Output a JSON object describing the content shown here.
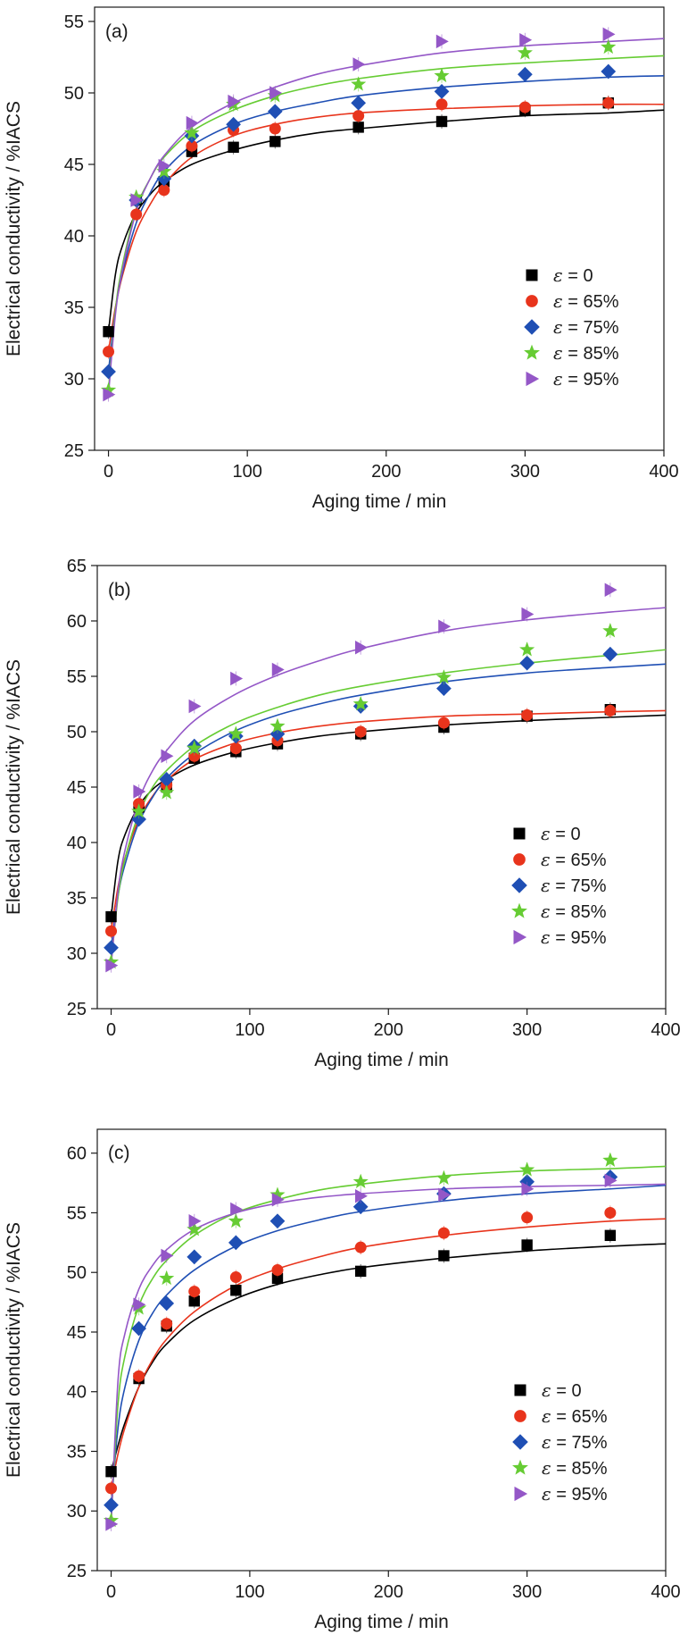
{
  "colors": {
    "e0": "#000000",
    "e65": "#e8341c",
    "e75": "#1f4fb4",
    "e85": "#66cc33",
    "e95": "#9457c7"
  },
  "chart_data": [
    {
      "type": "scatter",
      "panel_label": "(a)",
      "xlabel": "Aging time / min",
      "ylabel": "Electrical conductivity / %IACS",
      "xlim": [
        -10,
        400
      ],
      "ylim": [
        25,
        56
      ],
      "xticks": [
        0,
        100,
        200,
        300,
        400
      ],
      "yticks": [
        25,
        30,
        35,
        40,
        45,
        50,
        55
      ],
      "grid": false,
      "legend_position": "lower-right",
      "x": [
        0,
        20,
        40,
        60,
        90,
        120,
        180,
        240,
        300,
        360
      ],
      "series": [
        {
          "name": "ε = 0",
          "eps": "ε",
          "rest": " = 0",
          "marker": "square",
          "color": "#000000",
          "values": [
            33.3,
            42.5,
            43.8,
            45.9,
            46.2,
            46.6,
            47.6,
            48.0,
            48.8,
            49.3
          ]
        },
        {
          "name": "ε = 65%",
          "eps": "ε",
          "rest": " = 65%",
          "marker": "circle",
          "color": "#e8341c",
          "values": [
            31.9,
            41.5,
            43.2,
            46.3,
            47.4,
            47.5,
            48.4,
            49.2,
            49.0,
            49.3
          ]
        },
        {
          "name": "ε = 75%",
          "eps": "ε",
          "rest": " = 75%",
          "marker": "diamond",
          "color": "#1f4fb4",
          "values": [
            30.5,
            42.5,
            44.0,
            47.0,
            47.8,
            48.7,
            49.3,
            50.1,
            51.3,
            51.5
          ]
        },
        {
          "name": "ε = 85%",
          "eps": "ε",
          "rest": " = 85%",
          "marker": "star",
          "color": "#66cc33",
          "values": [
            29.2,
            42.7,
            44.5,
            47.2,
            49.2,
            49.8,
            50.6,
            51.2,
            52.8,
            53.2
          ]
        },
        {
          "name": "ε = 95%",
          "eps": "ε",
          "rest": " = 95%",
          "marker": "triangle-right",
          "color": "#9457c7",
          "values": [
            28.9,
            42.5,
            44.9,
            47.9,
            49.4,
            50.0,
            52.0,
            53.6,
            53.7,
            54.1
          ]
        }
      ],
      "fits": [
        {
          "color": "#000000",
          "x": [
            0,
            5,
            10,
            20,
            30,
            40,
            60,
            90,
            120,
            150,
            180,
            240,
            300,
            360,
            400
          ],
          "y": [
            33.3,
            37.3,
            39.3,
            41.6,
            42.9,
            43.8,
            45.0,
            46.0,
            46.7,
            47.2,
            47.5,
            48.0,
            48.4,
            48.6,
            48.8
          ]
        },
        {
          "color": "#e8341c",
          "x": [
            0,
            5,
            10,
            20,
            30,
            40,
            60,
            90,
            120,
            150,
            180,
            240,
            300,
            360,
            400
          ],
          "y": [
            31.9,
            35.0,
            37.2,
            40.3,
            42.2,
            43.6,
            45.5,
            47.0,
            47.8,
            48.3,
            48.6,
            48.9,
            49.1,
            49.2,
            49.2
          ]
        },
        {
          "color": "#1f4fb4",
          "x": [
            0,
            5,
            10,
            20,
            30,
            40,
            60,
            90,
            120,
            150,
            180,
            240,
            300,
            360,
            400
          ],
          "y": [
            30.5,
            34.8,
            37.4,
            40.9,
            43.0,
            44.5,
            46.3,
            47.8,
            48.7,
            49.3,
            49.8,
            50.4,
            50.8,
            51.1,
            51.2
          ]
        },
        {
          "color": "#66cc33",
          "x": [
            0,
            5,
            10,
            20,
            30,
            40,
            60,
            90,
            120,
            150,
            180,
            240,
            300,
            360,
            400
          ],
          "y": [
            29.2,
            34.8,
            37.9,
            41.9,
            44.0,
            45.5,
            47.3,
            48.8,
            49.8,
            50.5,
            51.0,
            51.7,
            52.1,
            52.4,
            52.6
          ]
        },
        {
          "color": "#9457c7",
          "x": [
            0,
            5,
            10,
            20,
            30,
            40,
            60,
            90,
            120,
            150,
            180,
            240,
            300,
            360,
            400
          ],
          "y": [
            28.9,
            34.5,
            37.6,
            41.7,
            44.0,
            45.6,
            47.6,
            49.3,
            50.4,
            51.3,
            51.9,
            52.8,
            53.3,
            53.6,
            53.8
          ]
        }
      ]
    },
    {
      "type": "scatter",
      "panel_label": "(b)",
      "xlabel": "Aging time / min",
      "ylabel": "Electrical conductivity / %IACS",
      "xlim": [
        -10,
        400
      ],
      "ylim": [
        25,
        65
      ],
      "xticks": [
        0,
        100,
        200,
        300,
        400
      ],
      "yticks": [
        25,
        30,
        35,
        40,
        45,
        50,
        55,
        60,
        65
      ],
      "grid": false,
      "legend_position": "lower-right",
      "x": [
        0,
        20,
        40,
        60,
        90,
        120,
        180,
        240,
        300,
        360
      ],
      "series": [
        {
          "name": "ε = 0",
          "eps": "ε",
          "rest": " = 0",
          "marker": "square",
          "color": "#000000",
          "values": [
            33.3,
            43.2,
            45.0,
            47.6,
            48.2,
            48.9,
            49.8,
            50.4,
            51.4,
            52.0
          ]
        },
        {
          "name": "ε = 65%",
          "eps": "ε",
          "rest": " = 65%",
          "marker": "circle",
          "color": "#e8341c",
          "values": [
            32.0,
            43.5,
            45.2,
            47.8,
            48.5,
            49.2,
            50.0,
            50.8,
            51.5,
            51.9
          ]
        },
        {
          "name": "ε = 75%",
          "eps": "ε",
          "rest": " = 75%",
          "marker": "diamond",
          "color": "#1f4fb4",
          "values": [
            30.5,
            42.1,
            45.7,
            48.7,
            49.6,
            49.8,
            52.3,
            53.9,
            56.2,
            57.0
          ]
        },
        {
          "name": "ε = 85%",
          "eps": "ε",
          "rest": " = 85%",
          "marker": "star",
          "color": "#66cc33",
          "values": [
            29.2,
            42.8,
            44.5,
            48.5,
            49.8,
            50.5,
            52.5,
            54.9,
            57.4,
            59.1
          ]
        },
        {
          "name": "ε = 95%",
          "eps": "ε",
          "rest": " = 95%",
          "marker": "triangle-right",
          "color": "#9457c7",
          "values": [
            28.9,
            44.6,
            47.8,
            52.3,
            54.8,
            55.6,
            57.6,
            59.5,
            60.6,
            62.8
          ]
        }
      ],
      "fits": [
        {
          "color": "#000000",
          "x": [
            0,
            5,
            10,
            20,
            30,
            40,
            60,
            90,
            120,
            150,
            180,
            240,
            300,
            360,
            400
          ],
          "y": [
            33.3,
            38.4,
            40.7,
            43.3,
            44.8,
            45.7,
            47.0,
            48.2,
            49.0,
            49.6,
            50.0,
            50.6,
            51.0,
            51.3,
            51.5
          ]
        },
        {
          "color": "#e8341c",
          "x": [
            0,
            5,
            10,
            20,
            30,
            40,
            60,
            90,
            120,
            150,
            180,
            240,
            300,
            360,
            400
          ],
          "y": [
            32.0,
            36.0,
            38.6,
            42.1,
            44.2,
            45.6,
            47.5,
            49.0,
            49.9,
            50.5,
            50.9,
            51.4,
            51.6,
            51.8,
            51.9
          ]
        },
        {
          "color": "#1f4fb4",
          "x": [
            0,
            5,
            10,
            20,
            30,
            40,
            60,
            90,
            120,
            150,
            180,
            240,
            300,
            360,
            400
          ],
          "y": [
            30.5,
            35.2,
            38.0,
            41.8,
            44.1,
            45.8,
            48.0,
            50.1,
            51.5,
            52.5,
            53.3,
            54.5,
            55.3,
            55.8,
            56.1
          ]
        },
        {
          "color": "#66cc33",
          "x": [
            0,
            5,
            10,
            20,
            30,
            40,
            60,
            90,
            120,
            150,
            180,
            240,
            300,
            360,
            400
          ],
          "y": [
            29.2,
            35.1,
            38.5,
            42.6,
            45.0,
            46.5,
            48.7,
            50.8,
            52.2,
            53.3,
            54.1,
            55.3,
            56.2,
            56.9,
            57.4
          ]
        },
        {
          "color": "#9457c7",
          "x": [
            0,
            5,
            10,
            20,
            30,
            40,
            60,
            90,
            120,
            150,
            180,
            240,
            300,
            360,
            400
          ],
          "y": [
            28.9,
            35.6,
            39.3,
            43.8,
            46.5,
            48.3,
            51.0,
            53.4,
            55.1,
            56.4,
            57.5,
            59.1,
            60.1,
            60.8,
            61.2
          ]
        }
      ]
    },
    {
      "type": "scatter",
      "panel_label": "(c)",
      "xlabel": "Aging time / min",
      "ylabel": "Electrical conductivity / %IACS",
      "xlim": [
        -10,
        400
      ],
      "ylim": [
        25,
        62
      ],
      "xticks": [
        0,
        100,
        200,
        300,
        400
      ],
      "yticks": [
        25,
        30,
        35,
        40,
        45,
        50,
        55,
        60
      ],
      "grid": false,
      "legend_position": "lower-right",
      "x": [
        0,
        20,
        40,
        60,
        90,
        120,
        180,
        240,
        300,
        360
      ],
      "series": [
        {
          "name": "ε = 0",
          "eps": "ε",
          "rest": " = 0",
          "marker": "square",
          "color": "#000000",
          "values": [
            33.3,
            41.1,
            45.5,
            47.6,
            48.5,
            49.5,
            50.1,
            51.4,
            52.3,
            53.1
          ]
        },
        {
          "name": "ε = 65%",
          "eps": "ε",
          "rest": " = 65%",
          "marker": "circle",
          "color": "#e8341c",
          "values": [
            31.9,
            41.3,
            45.7,
            48.4,
            49.6,
            50.2,
            52.1,
            53.3,
            54.6,
            55.0
          ]
        },
        {
          "name": "ε = 75%",
          "eps": "ε",
          "rest": " = 75%",
          "marker": "diamond",
          "color": "#1f4fb4",
          "values": [
            30.5,
            45.3,
            47.4,
            51.3,
            52.5,
            54.3,
            55.5,
            56.6,
            57.6,
            58.0
          ]
        },
        {
          "name": "ε = 85%",
          "eps": "ε",
          "rest": " = 85%",
          "marker": "star",
          "color": "#66cc33",
          "values": [
            29.2,
            47.0,
            49.5,
            53.6,
            54.3,
            56.5,
            57.6,
            57.9,
            58.6,
            59.4
          ]
        },
        {
          "name": "ε = 95%",
          "eps": "ε",
          "rest": " = 95%",
          "marker": "triangle-right",
          "color": "#9457c7",
          "values": [
            28.9,
            47.3,
            51.4,
            54.3,
            55.3,
            56.1,
            56.4,
            56.5,
            57.0,
            57.7
          ]
        }
      ],
      "fits": [
        {
          "color": "#000000",
          "x": [
            0,
            5,
            10,
            20,
            30,
            40,
            60,
            90,
            120,
            150,
            180,
            240,
            300,
            360,
            400
          ],
          "y": [
            33.3,
            35.5,
            37.4,
            40.4,
            42.5,
            44.0,
            46.0,
            47.8,
            49.0,
            49.8,
            50.4,
            51.2,
            51.8,
            52.2,
            52.4
          ]
        },
        {
          "color": "#e8341c",
          "x": [
            0,
            5,
            10,
            20,
            30,
            40,
            60,
            90,
            120,
            150,
            180,
            240,
            300,
            360,
            400
          ],
          "y": [
            31.9,
            34.8,
            37.0,
            40.4,
            42.7,
            44.4,
            46.7,
            48.9,
            50.3,
            51.3,
            52.1,
            53.1,
            53.8,
            54.3,
            54.5
          ]
        },
        {
          "color": "#1f4fb4",
          "x": [
            0,
            5,
            10,
            20,
            30,
            40,
            60,
            90,
            120,
            150,
            180,
            240,
            300,
            360,
            400
          ],
          "y": [
            30.5,
            37.0,
            40.4,
            44.3,
            46.6,
            48.1,
            50.2,
            52.2,
            53.5,
            54.4,
            55.1,
            56.0,
            56.6,
            57.0,
            57.3
          ]
        },
        {
          "color": "#66cc33",
          "x": [
            0,
            5,
            10,
            20,
            30,
            40,
            60,
            90,
            120,
            150,
            180,
            240,
            300,
            360,
            400
          ],
          "y": [
            29.2,
            39.0,
            43.0,
            47.2,
            49.5,
            51.0,
            53.1,
            55.0,
            56.1,
            56.9,
            57.4,
            58.1,
            58.5,
            58.7,
            58.9
          ]
        },
        {
          "color": "#9457c7",
          "x": [
            0,
            5,
            10,
            20,
            30,
            40,
            60,
            90,
            120,
            150,
            180,
            240,
            300,
            360,
            400
          ],
          "y": [
            28.9,
            41.0,
            44.9,
            48.6,
            50.6,
            51.9,
            53.6,
            55.0,
            55.8,
            56.3,
            56.6,
            57.0,
            57.2,
            57.3,
            57.4
          ]
        }
      ]
    }
  ]
}
